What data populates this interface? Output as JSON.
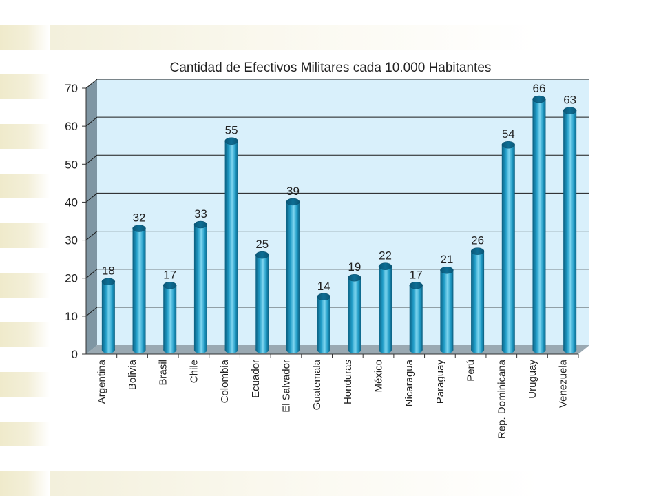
{
  "chart_data": {
    "type": "bar",
    "title": "Cantidad de Efectivos Militares cada 10.000 Habitantes",
    "xlabel": "",
    "ylabel": "",
    "categories": [
      "Argentina",
      "Bolivia",
      "Brasil",
      "Chile",
      "Colombia",
      "Ecuador",
      "El Salvador",
      "Guatemala",
      "Honduras",
      "México",
      "Nicaragua",
      "Paraguay",
      "Perú",
      "Rep. Dominicana",
      "Uruguay",
      "Venezuela"
    ],
    "values": [
      18,
      32,
      17,
      33,
      55,
      25,
      39,
      14,
      19,
      22,
      17,
      21,
      26,
      54,
      66,
      63
    ],
    "ylim": [
      0,
      70
    ],
    "yticks": [
      0,
      10,
      20,
      30,
      40,
      50,
      60,
      70
    ],
    "grid": true,
    "colors": {
      "bar": "#1f9bc6",
      "bar_dark": "#0b5f80",
      "bar_light": "#7fd6f0",
      "wall": "#d9f0fb",
      "side_wall": "#7f96a3",
      "floor": "#9aa9b2",
      "grid": "#1a1a1a"
    }
  }
}
